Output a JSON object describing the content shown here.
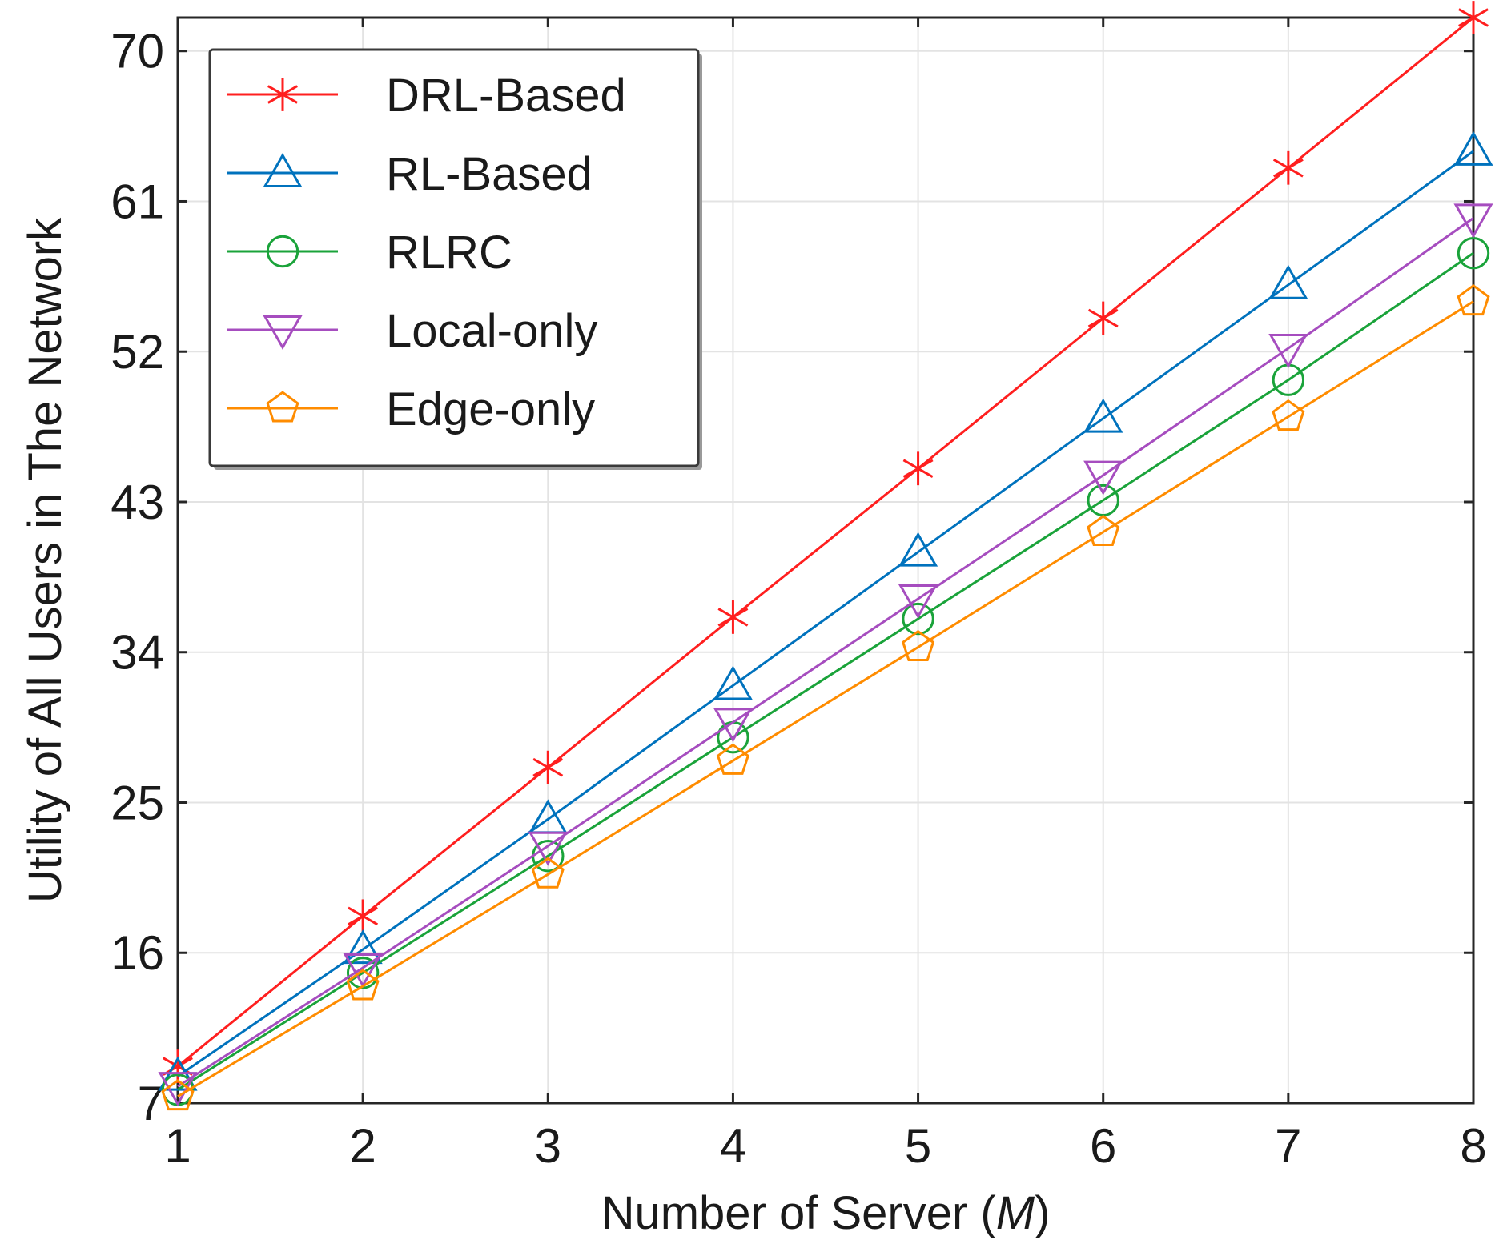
{
  "chart_data": {
    "type": "line",
    "title": "",
    "xlabel": {
      "prefix": "Number of Server (",
      "symbol": "M",
      "suffix": ")"
    },
    "ylabel": "Utility of All Users in The Network",
    "xlim": [
      1,
      8
    ],
    "ylim": [
      7,
      72
    ],
    "xticks": [
      1,
      2,
      3,
      4,
      5,
      6,
      7,
      8
    ],
    "yticks": [
      7,
      16,
      25,
      34,
      43,
      52,
      61,
      70
    ],
    "grid": true,
    "legend_position": "top-left",
    "series": [
      {
        "name": "DRL-Based",
        "color": "#ff1f1f",
        "marker": "asterisk",
        "x": [
          1,
          2,
          3,
          4,
          5,
          6,
          7,
          8
        ],
        "values": [
          9.2,
          18.2,
          27.1,
          36.1,
          45.0,
          54.0,
          63.0,
          72.0
        ]
      },
      {
        "name": "RL-Based",
        "color": "#0072bd",
        "marker": "triangle-up",
        "x": [
          1,
          2,
          3,
          4,
          5,
          6,
          7,
          8
        ],
        "values": [
          8.6,
          16.2,
          24.0,
          32.0,
          40.0,
          48.0,
          56.0,
          64.0
        ]
      },
      {
        "name": "RLRC",
        "color": "#1aa33a",
        "marker": "circle",
        "x": [
          1,
          2,
          3,
          4,
          5,
          6,
          7,
          8
        ],
        "values": [
          7.8,
          14.8,
          21.8,
          28.9,
          36.0,
          43.1,
          50.3,
          57.9
        ]
      },
      {
        "name": "Local-only",
        "color": "#a64dbf",
        "marker": "triangle-down",
        "x": [
          1,
          2,
          3,
          4,
          5,
          6,
          7,
          8
        ],
        "values": [
          8.0,
          15.1,
          22.4,
          29.8,
          37.2,
          44.6,
          52.2,
          60.0
        ]
      },
      {
        "name": "Edge-only",
        "color": "#ff8c00",
        "marker": "pentagon",
        "x": [
          1,
          2,
          3,
          4,
          5,
          6,
          7,
          8
        ],
        "values": [
          7.4,
          14.0,
          20.7,
          27.5,
          34.3,
          41.2,
          48.1,
          55.0
        ]
      }
    ]
  }
}
